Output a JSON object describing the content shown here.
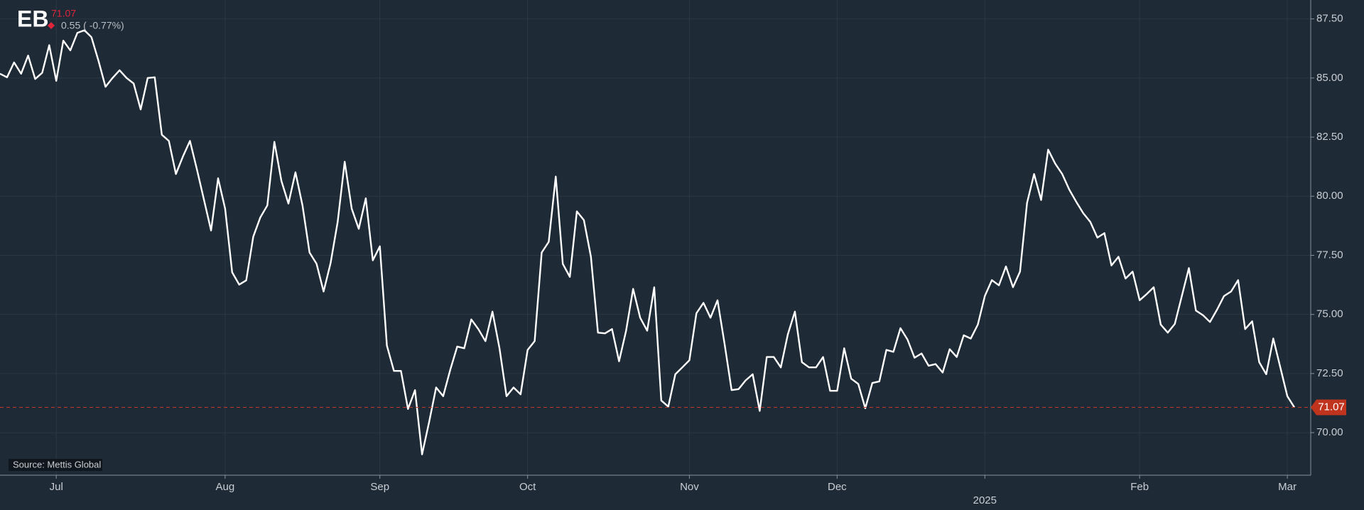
{
  "header": {
    "logo": "EB",
    "price": "71.07",
    "change": "0.55 ( -0.77%)"
  },
  "source": "Source: Mettis Global",
  "chart_data": {
    "type": "line",
    "color": "#ffffff",
    "grid": true,
    "ylim": [
      68.2,
      88.3
    ],
    "yticks": [
      {
        "value": 70,
        "label": "70.00"
      },
      {
        "value": 72.5,
        "label": "72.50"
      },
      {
        "value": 75,
        "label": "75.00"
      },
      {
        "value": 77.5,
        "label": "77.50"
      },
      {
        "value": 80,
        "label": "80.00"
      },
      {
        "value": 82.5,
        "label": "82.50"
      },
      {
        "value": 85,
        "label": "85.00"
      },
      {
        "value": 87.5,
        "label": "87.50"
      }
    ],
    "categories": [
      null,
      null,
      null,
      null,
      null,
      null,
      null,
      null,
      "Jul",
      null,
      null,
      null,
      null,
      null,
      null,
      null,
      null,
      null,
      null,
      null,
      null,
      null,
      null,
      null,
      null,
      null,
      null,
      null,
      null,
      null,
      null,
      null,
      "Aug",
      null,
      null,
      null,
      null,
      null,
      null,
      null,
      null,
      null,
      null,
      null,
      null,
      null,
      null,
      null,
      null,
      null,
      null,
      null,
      null,
      null,
      "Sep",
      null,
      null,
      null,
      null,
      null,
      null,
      null,
      null,
      null,
      null,
      null,
      null,
      null,
      null,
      null,
      null,
      null,
      null,
      null,
      null,
      "Oct",
      null,
      null,
      null,
      null,
      null,
      null,
      null,
      null,
      null,
      null,
      null,
      null,
      null,
      null,
      null,
      null,
      null,
      null,
      null,
      null,
      null,
      null,
      "Nov",
      null,
      null,
      null,
      null,
      null,
      null,
      null,
      null,
      null,
      null,
      null,
      null,
      null,
      null,
      null,
      null,
      null,
      null,
      null,
      null,
      "Dec",
      null,
      null,
      null,
      null,
      null,
      null,
      null,
      null,
      null,
      null,
      null,
      null,
      null,
      null,
      null,
      null,
      null,
      null,
      null,
      null,
      "2025",
      null,
      null,
      null,
      null,
      null,
      null,
      null,
      null,
      null,
      null,
      null,
      null,
      null,
      null,
      null,
      null,
      null,
      null,
      null,
      null,
      null,
      "Feb",
      null,
      null,
      null,
      null,
      null,
      null,
      null,
      null,
      null,
      null,
      null,
      null,
      null,
      null,
      null,
      null,
      null,
      null,
      null,
      null,
      "Mar",
      null
    ],
    "values": [
      85.18,
      85.03,
      85.66,
      85.18,
      85.95,
      84.96,
      85.22,
      86.39,
      84.88,
      86.58,
      86.17,
      86.91,
      87.02,
      86.73,
      85.73,
      84.63,
      85.0,
      85.33,
      85.0,
      84.77,
      83.67,
      85.0,
      85.03,
      82.6,
      82.34,
      80.94,
      81.68,
      82.34,
      81.12,
      79.84,
      78.55,
      80.76,
      79.47,
      76.78,
      76.26,
      76.44,
      78.29,
      79.1,
      79.61,
      82.3,
      80.65,
      79.69,
      81.01,
      79.61,
      77.62,
      77.14,
      75.97,
      77.18,
      78.91,
      81.46,
      79.47,
      78.62,
      79.91,
      77.29,
      77.88,
      73.68,
      72.61,
      72.61,
      71.0,
      71.8,
      69.08,
      70.44,
      71.91,
      71.54,
      72.65,
      73.64,
      73.57,
      74.79,
      74.38,
      73.87,
      75.12,
      73.57,
      71.54,
      71.91,
      71.62,
      73.5,
      73.87,
      77.62,
      78.07,
      80.83,
      77.14,
      76.59,
      79.36,
      78.99,
      77.44,
      74.23,
      74.2,
      74.38,
      73.02,
      74.31,
      76.08,
      74.86,
      74.31,
      76.15,
      71.36,
      71.1,
      72.47,
      72.76,
      73.06,
      75.05,
      75.49,
      74.86,
      75.6,
      73.76,
      71.8,
      71.84,
      72.21,
      72.47,
      70.92,
      73.2,
      73.2,
      72.76,
      74.16,
      75.12,
      72.98,
      72.76,
      72.76,
      73.2,
      71.77,
      71.77,
      73.57,
      72.28,
      72.06,
      71.03,
      72.1,
      72.17,
      73.5,
      73.42,
      74.42,
      73.94,
      73.17,
      73.35,
      72.83,
      72.9,
      72.54,
      73.53,
      73.2,
      74.12,
      73.98,
      74.57,
      75.78,
      76.45,
      76.23,
      77.03,
      76.15,
      76.81,
      79.72,
      80.94,
      79.84,
      81.97,
      81.38,
      80.94,
      80.28,
      79.76,
      79.28,
      78.91,
      78.25,
      78.44,
      77.07,
      77.44,
      76.52,
      76.81,
      75.6,
      75.86,
      76.15,
      74.57,
      74.23,
      74.6,
      75.78,
      76.96,
      75.16,
      74.97,
      74.68,
      75.2,
      75.78,
      75.97,
      76.45,
      74.38,
      74.71,
      72.98,
      72.47,
      73.98,
      72.76,
      71.54,
      71.07
    ]
  }
}
